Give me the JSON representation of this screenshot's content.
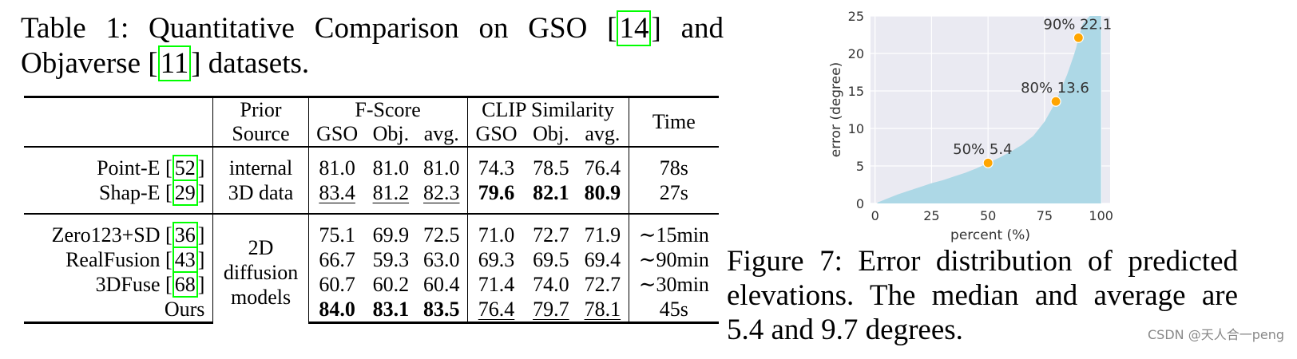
{
  "table_caption": {
    "prefix": "Table 1: Quantitative Comparison on GSO [",
    "ref1": "14",
    "middle": "] and Objaverse [",
    "ref2": "11",
    "suffix": "] datasets."
  },
  "table": {
    "headers": {
      "prior_top": "Prior",
      "prior_bottom": "Source",
      "fscore": "F-Score",
      "clip": "CLIP Similarity",
      "time": "Time",
      "gso": "GSO",
      "obj": "Obj.",
      "avg": "avg."
    },
    "groups": [
      {
        "prior": [
          "internal",
          "3D data"
        ],
        "rows": [
          {
            "name": "Point-E [",
            "ref": "52",
            "close": "]",
            "f": [
              "81.0",
              "81.0",
              "81.0"
            ],
            "c": [
              "74.3",
              "78.5",
              "76.4"
            ],
            "time": "78s"
          },
          {
            "name": "Shap-E [",
            "ref": "29",
            "close": "]",
            "f": [
              "83.4",
              "81.2",
              "82.3"
            ],
            "c": [
              "79.6",
              "82.1",
              "80.9"
            ],
            "time": "27s"
          }
        ]
      },
      {
        "prior": [
          "2D",
          "diffusion",
          "models"
        ],
        "rows": [
          {
            "name": "Zero123+SD [",
            "ref": "36",
            "close": "]",
            "f": [
              "75.1",
              "69.9",
              "72.5"
            ],
            "c": [
              "71.0",
              "72.7",
              "71.9"
            ],
            "time": "∼15min"
          },
          {
            "name": "RealFusion [",
            "ref": "43",
            "close": "]",
            "f": [
              "66.7",
              "59.3",
              "63.0"
            ],
            "c": [
              "69.3",
              "69.5",
              "69.4"
            ],
            "time": "∼90min"
          },
          {
            "name": "3DFuse [",
            "ref": "68",
            "close": "]",
            "f": [
              "60.7",
              "60.2",
              "60.4"
            ],
            "c": [
              "71.4",
              "74.0",
              "72.7"
            ],
            "time": "∼30min"
          },
          {
            "name": "Ours",
            "ref": "",
            "close": "",
            "f": [
              "84.0",
              "83.1",
              "83.5"
            ],
            "c": [
              "76.4",
              "79.7",
              "78.1"
            ],
            "time": "45s"
          }
        ]
      }
    ]
  },
  "chart_data": {
    "type": "area",
    "xlabel": "percent (%)",
    "ylabel": "error (degree)",
    "xlim": [
      -2,
      104
    ],
    "ylim": [
      0,
      25
    ],
    "xticks": [
      0,
      25,
      50,
      75,
      100
    ],
    "yticks": [
      0,
      5,
      10,
      15,
      20,
      25
    ],
    "fill_color": "#add8e6",
    "grid": true,
    "curve": {
      "x": [
        1,
        5,
        10,
        15,
        20,
        25,
        30,
        35,
        40,
        45,
        50,
        55,
        60,
        65,
        70,
        75,
        78,
        80,
        82,
        85,
        88,
        89,
        90,
        92,
        95,
        100
      ],
      "y": [
        0.1,
        0.6,
        1.2,
        1.7,
        2.2,
        2.7,
        3.1,
        3.6,
        4.1,
        4.7,
        5.4,
        6.1,
        6.9,
        7.8,
        9.0,
        10.9,
        12.5,
        13.6,
        15.0,
        17.2,
        19.8,
        20.8,
        22.1,
        24.0,
        25,
        25
      ]
    },
    "markers": [
      {
        "x": 50,
        "y": 5.4,
        "label": "50% 5.4"
      },
      {
        "x": 80,
        "y": 13.6,
        "label": "80% 13.6"
      },
      {
        "x": 90,
        "y": 22.1,
        "label": "90% 22.1"
      }
    ],
    "marker_color": "#ffa500"
  },
  "figure_caption": "Figure 7: Error distribution of predicted elevations. The median and average are 5.4 and 9.7 degrees.",
  "watermark": "CSDN @天人合一peng"
}
